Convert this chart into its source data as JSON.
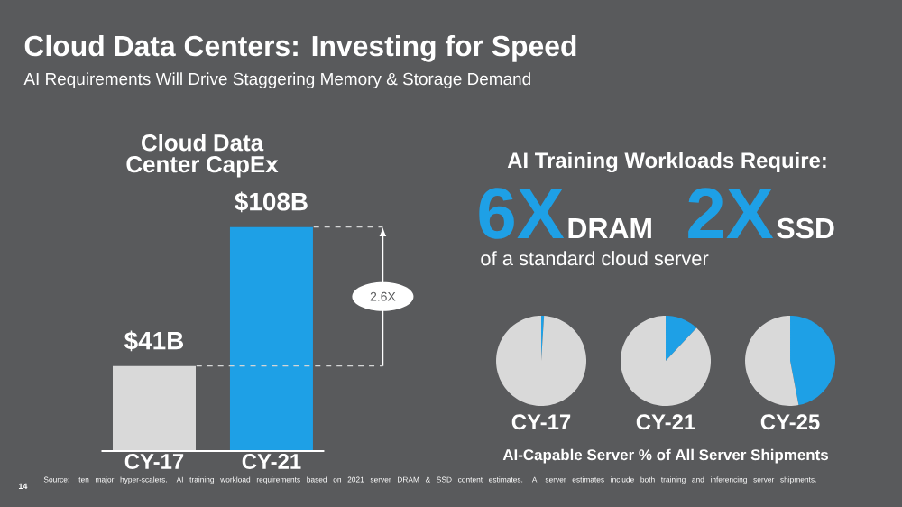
{
  "chart_data": [
    {
      "type": "other",
      "title": "Cloud Data Centers: Investing for Speed",
      "subtitle": "AI Requirements Will Drive Staggering Memory & Storage Demand",
      "annotations": [
        "14",
        "Source: ten major hyper-scalers. AI training workload requirements based on 2021 server DRAM & SSD content estimates. AI server estimates include both training and inferencing server shipments."
      ]
    },
    {
      "type": "bar",
      "title": "Cloud Data Center CapEx",
      "categories": [
        "CY-17",
        "CY-21"
      ],
      "values": [
        41,
        108
      ],
      "colors": [
        "#d9d9d9",
        "#1ea0e6"
      ],
      "value_labels": [
        "$41B",
        "$108B"
      ],
      "annotations": [
        "2.6X"
      ],
      "ref_lines": [
        {
          "axis": "y",
          "value": 41,
          "line_style": "dashed"
        },
        {
          "axis": "y",
          "value": 108,
          "line_style": "dashed"
        }
      ]
    },
    {
      "type": "other",
      "title": "AI Training Workloads Require:",
      "annotations": [
        "6X",
        "DRAM",
        "2X",
        "SSD",
        "of a standard cloud server"
      ]
    },
    {
      "type": "pie",
      "title": "CY-17",
      "categories": [
        null,
        null
      ],
      "values": [
        1,
        99
      ],
      "colors": [
        "#1ea0e6",
        "#d9d9d9"
      ]
    },
    {
      "type": "pie",
      "title": "CY-21",
      "categories": [
        null,
        null
      ],
      "values": [
        12,
        88
      ],
      "colors": [
        "#1ea0e6",
        "#d9d9d9"
      ]
    },
    {
      "type": "pie",
      "title": "CY-25",
      "categories": [
        null,
        null
      ],
      "values": [
        47,
        53
      ],
      "colors": [
        "#1ea0e6",
        "#d9d9d9"
      ],
      "annotations": [
        "AI-Capable Server % of All Server Shipments"
      ]
    }
  ]
}
